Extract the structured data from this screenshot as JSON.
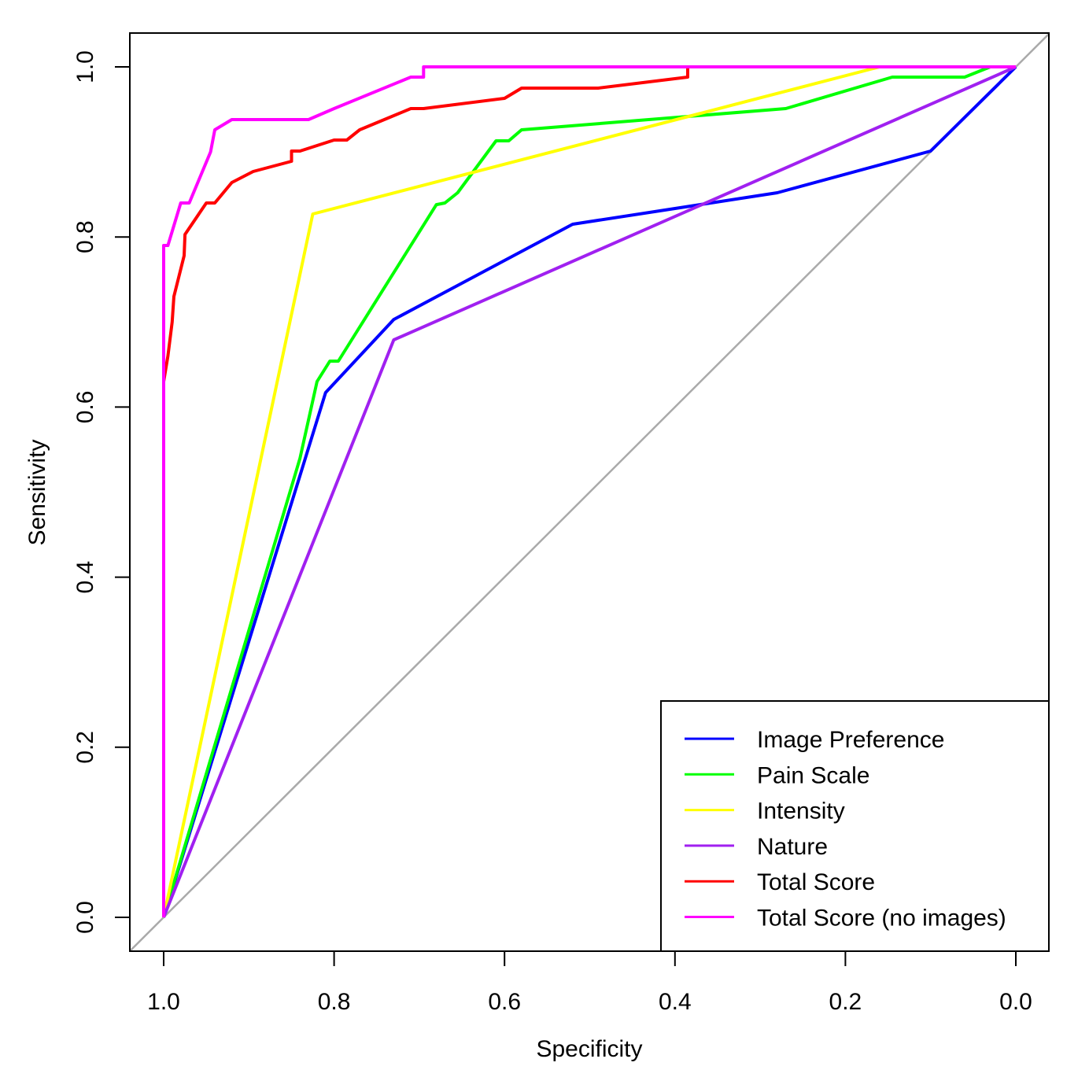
{
  "chart_data": {
    "type": "line",
    "title": "",
    "xlabel": "Specificity",
    "ylabel": "Sensitivity",
    "xlim": [
      1.0,
      0.0
    ],
    "ylim": [
      0.0,
      1.0
    ],
    "x_reversed": true,
    "xticks": [
      1.0,
      0.8,
      0.6,
      0.4,
      0.2,
      0.0
    ],
    "yticks": [
      0.0,
      0.2,
      0.4,
      0.6,
      0.8,
      1.0
    ],
    "xtick_labels": [
      "1.0",
      "0.8",
      "0.6",
      "0.4",
      "0.2",
      "0.0"
    ],
    "ytick_labels": [
      "0.0",
      "0.2",
      "0.4",
      "0.6",
      "0.8",
      "1.0"
    ],
    "grid": false,
    "legend_position": "bottom-right",
    "reference_line": {
      "name": "chance",
      "color": "#aaaaaa",
      "points": [
        [
          1.04,
          -0.04
        ],
        [
          -0.04,
          1.04
        ]
      ]
    },
    "series": [
      {
        "name": "Image Preference",
        "color": "#0000ff",
        "points": [
          [
            1.0,
            0.0
          ],
          [
            0.81,
            0.617
          ],
          [
            0.73,
            0.703
          ],
          [
            0.52,
            0.815
          ],
          [
            0.28,
            0.852
          ],
          [
            0.1,
            0.901
          ],
          [
            0.0,
            1.0
          ]
        ]
      },
      {
        "name": "Pain Scale",
        "color": "#00ff00",
        "points": [
          [
            1.0,
            0.0
          ],
          [
            0.84,
            0.54
          ],
          [
            0.82,
            0.63
          ],
          [
            0.805,
            0.654
          ],
          [
            0.795,
            0.654
          ],
          [
            0.68,
            0.838
          ],
          [
            0.67,
            0.84
          ],
          [
            0.655,
            0.852
          ],
          [
            0.61,
            0.913
          ],
          [
            0.595,
            0.913
          ],
          [
            0.58,
            0.926
          ],
          [
            0.27,
            0.951
          ],
          [
            0.145,
            0.988
          ],
          [
            0.06,
            0.988
          ],
          [
            0.03,
            1.0
          ],
          [
            0.0,
            1.0
          ]
        ]
      },
      {
        "name": "Intensity",
        "color": "#ffff00",
        "points": [
          [
            1.0,
            0.0
          ],
          [
            0.825,
            0.827
          ],
          [
            0.16,
            1.0
          ],
          [
            0.0,
            1.0
          ]
        ]
      },
      {
        "name": "Nature",
        "color": "#a020f0",
        "points": [
          [
            1.0,
            0.0
          ],
          [
            0.73,
            0.679
          ],
          [
            0.0,
            1.0
          ]
        ]
      },
      {
        "name": "Total Score",
        "color": "#ff0000",
        "points": [
          [
            1.0,
            0.63
          ],
          [
            0.995,
            0.66
          ],
          [
            0.99,
            0.7
          ],
          [
            0.988,
            0.73
          ],
          [
            0.976,
            0.778
          ],
          [
            0.975,
            0.803
          ],
          [
            0.95,
            0.84
          ],
          [
            0.94,
            0.84
          ],
          [
            0.92,
            0.864
          ],
          [
            0.895,
            0.877
          ],
          [
            0.85,
            0.889
          ],
          [
            0.85,
            0.901
          ],
          [
            0.84,
            0.901
          ],
          [
            0.8,
            0.914
          ],
          [
            0.785,
            0.914
          ],
          [
            0.77,
            0.926
          ],
          [
            0.71,
            0.951
          ],
          [
            0.695,
            0.951
          ],
          [
            0.6,
            0.963
          ],
          [
            0.58,
            0.975
          ],
          [
            0.49,
            0.975
          ],
          [
            0.385,
            0.988
          ],
          [
            0.385,
            1.0
          ],
          [
            0.0,
            1.0
          ]
        ]
      },
      {
        "name": "Total Score (no images)",
        "color": "#ff00ff",
        "points": [
          [
            1.0,
            0.0
          ],
          [
            1.0,
            0.79
          ],
          [
            0.995,
            0.79
          ],
          [
            0.98,
            0.84
          ],
          [
            0.97,
            0.84
          ],
          [
            0.945,
            0.9
          ],
          [
            0.94,
            0.926
          ],
          [
            0.92,
            0.938
          ],
          [
            0.83,
            0.938
          ],
          [
            0.8,
            0.951
          ],
          [
            0.71,
            0.988
          ],
          [
            0.695,
            0.988
          ],
          [
            0.695,
            1.0
          ],
          [
            0.0,
            1.0
          ]
        ]
      }
    ]
  }
}
